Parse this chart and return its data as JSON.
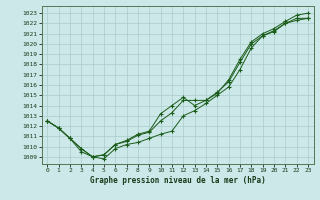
{
  "title": "Graphe pression niveau de la mer (hPa)",
  "bg_color": "#cce8e8",
  "line_color": "#1a5c1a",
  "grid_color": "#aacccc",
  "xlim": [
    -0.5,
    23.5
  ],
  "ylim": [
    1008.3,
    1023.7
  ],
  "xticks": [
    0,
    1,
    2,
    3,
    4,
    5,
    6,
    7,
    8,
    9,
    10,
    11,
    12,
    13,
    14,
    15,
    16,
    17,
    18,
    19,
    20,
    21,
    22,
    23
  ],
  "yticks": [
    1009,
    1010,
    1011,
    1012,
    1013,
    1014,
    1015,
    1016,
    1017,
    1018,
    1019,
    1020,
    1021,
    1022,
    1023
  ],
  "line1_x": [
    0,
    1,
    2,
    3,
    4,
    5,
    6,
    7,
    8,
    9,
    10,
    11,
    12,
    13,
    14,
    15,
    16,
    17,
    18,
    19,
    20,
    21,
    22,
    23
  ],
  "line1_y": [
    1012.5,
    1011.8,
    1010.8,
    1009.8,
    1009.0,
    1008.8,
    1009.8,
    1010.2,
    1010.4,
    1010.8,
    1011.2,
    1011.5,
    1013.0,
    1013.5,
    1014.2,
    1015.0,
    1015.8,
    1017.5,
    1019.6,
    1020.8,
    1021.2,
    1022.0,
    1022.3,
    1022.5
  ],
  "line2_x": [
    0,
    1,
    2,
    3,
    4,
    5,
    6,
    7,
    8,
    9,
    10,
    11,
    12,
    13,
    14,
    15,
    16,
    17,
    18,
    19,
    20,
    21,
    22,
    23
  ],
  "line2_y": [
    1012.5,
    1011.8,
    1010.8,
    1009.5,
    1009.0,
    1009.2,
    1010.2,
    1010.5,
    1011.1,
    1011.4,
    1012.5,
    1013.3,
    1014.5,
    1014.5,
    1014.5,
    1015.3,
    1016.3,
    1018.2,
    1020.0,
    1020.8,
    1021.3,
    1022.0,
    1022.5,
    1022.5
  ],
  "line3_x": [
    0,
    1,
    2,
    3,
    4,
    5,
    6,
    7,
    8,
    9,
    10,
    11,
    12,
    13,
    14,
    15,
    16,
    17,
    18,
    19,
    20,
    21,
    22,
    23
  ],
  "line3_y": [
    1012.5,
    1011.8,
    1010.8,
    1009.8,
    1009.0,
    1009.2,
    1010.2,
    1010.6,
    1011.2,
    1011.5,
    1013.2,
    1014.0,
    1014.8,
    1014.0,
    1014.5,
    1015.2,
    1016.5,
    1018.5,
    1020.2,
    1021.0,
    1021.5,
    1022.2,
    1022.8,
    1023.0
  ],
  "xlabel_fontsize": 5.5,
  "tick_fontsize": 4.5
}
